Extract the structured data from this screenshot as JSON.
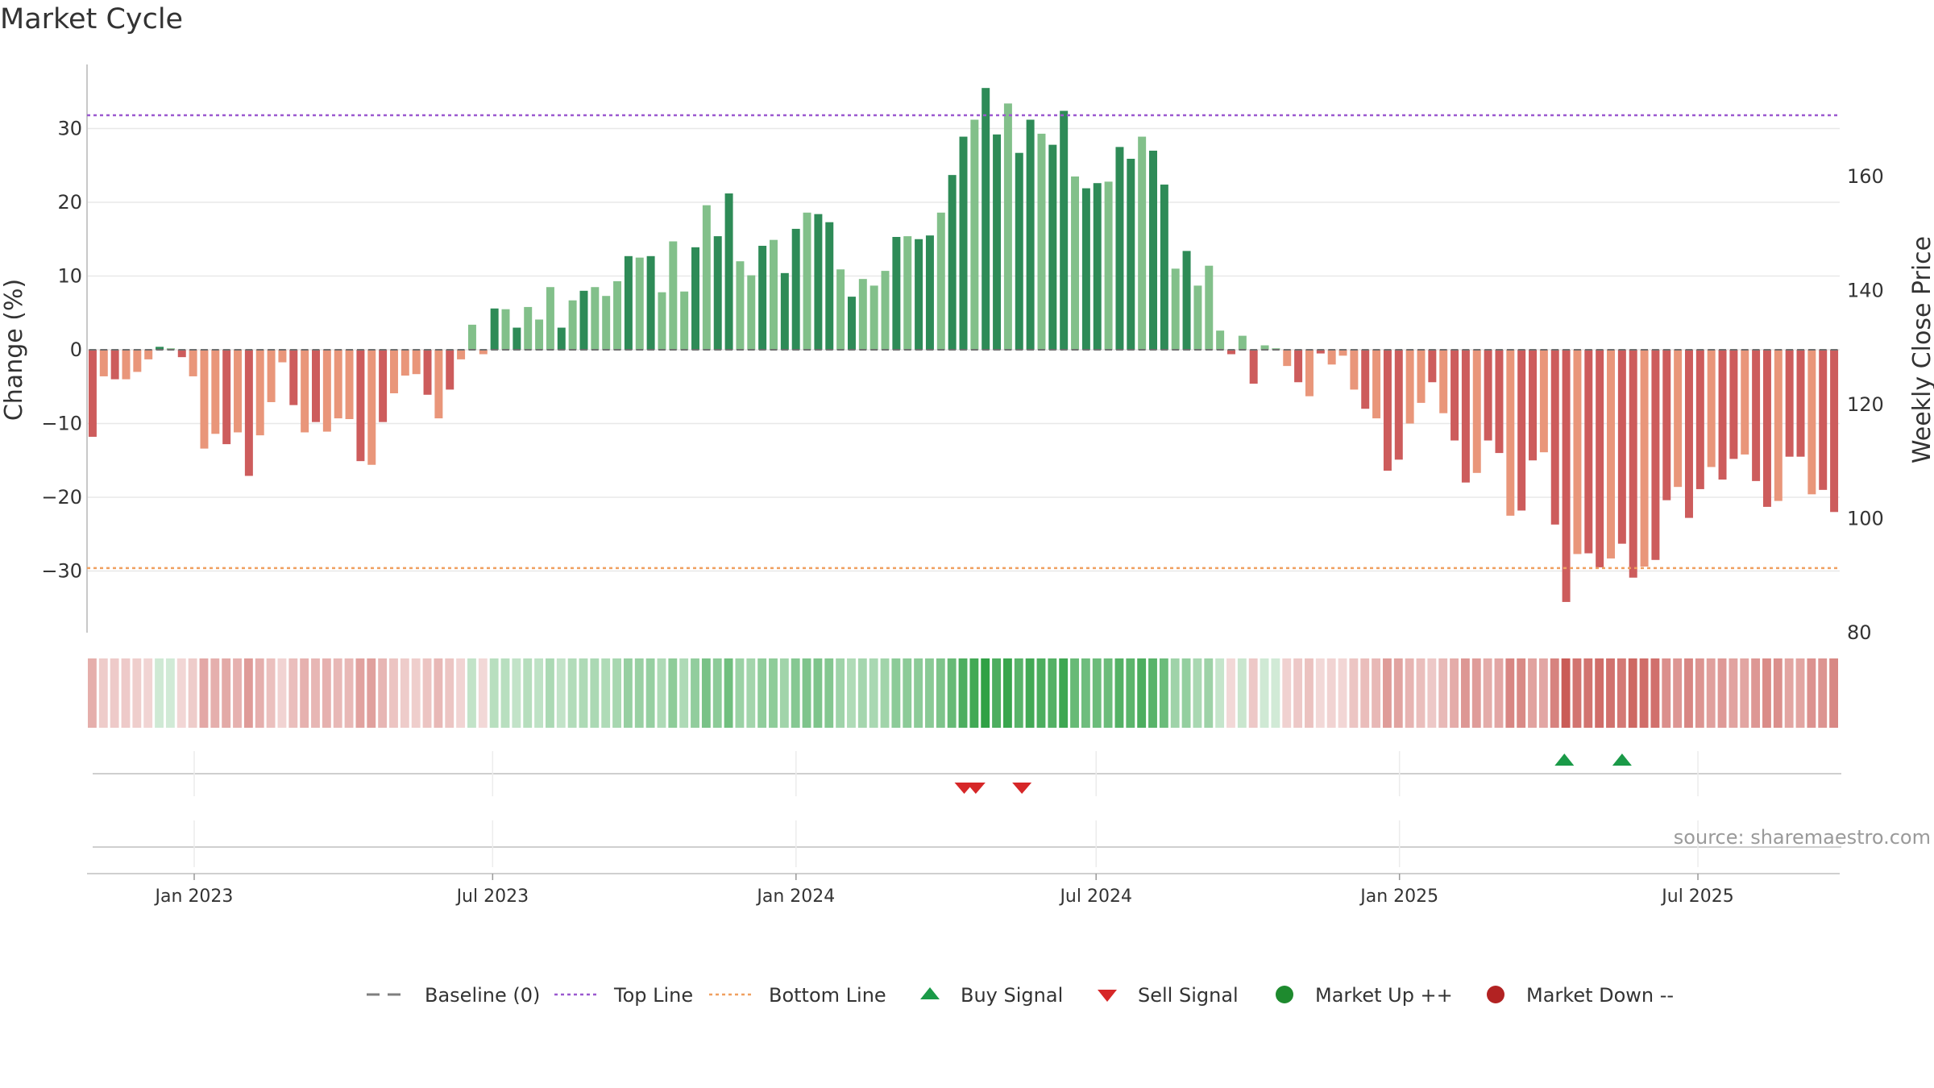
{
  "title": "Market Cycle",
  "source": "source: sharemaestro.com",
  "chart_data": {
    "type": "bar",
    "title": "Market Cycle",
    "ylabel": "Change (%)",
    "y2label": "Weekly Close Price",
    "ylim": [
      -38,
      38
    ],
    "y2lim": [
      80,
      170
    ],
    "yticks": [
      30,
      20,
      10,
      0,
      -10,
      -20,
      -30
    ],
    "y2ticks": [
      160,
      140,
      120,
      100,
      80
    ],
    "grid": true,
    "xlim": [
      "2022-10-28",
      "2025-09-25"
    ],
    "xticks": [
      {
        "date": "2023-01-01",
        "label": "Jan 2023"
      },
      {
        "date": "2023-07-01",
        "label": "Jul 2023"
      },
      {
        "date": "2024-01-01",
        "label": "Jan 2024"
      },
      {
        "date": "2024-07-01",
        "label": "Jul 2024"
      },
      {
        "date": "2025-01-01",
        "label": "Jan 2025"
      },
      {
        "date": "2025-07-01",
        "label": "Jul 2025"
      }
    ],
    "start_date": "2022-10-28",
    "week_step_days": 7,
    "top_line": 31.8,
    "bottom_line": -29.6,
    "baseline": 0,
    "series": [
      {
        "values": [
          -11.8,
          -3.6,
          -4.0,
          -4.0,
          -3.0,
          -1.3,
          0.4,
          0.2,
          -1.0,
          -3.6,
          -13.4,
          -11.4,
          -12.8,
          -11.2,
          -17.1,
          -11.6,
          -7.1,
          -1.7,
          -7.5,
          -11.2,
          -9.8,
          -11.1,
          -9.3,
          -9.4,
          -15.1,
          -15.6,
          -9.8,
          -5.9,
          -3.5,
          -3.3,
          -6.1,
          -9.3,
          -5.4,
          -1.3,
          3.4,
          -0.6,
          5.6,
          5.5,
          3.0,
          5.8,
          4.1,
          8.5,
          3.0,
          6.7,
          8.0,
          8.5,
          7.3,
          9.3,
          12.7,
          12.5,
          12.7,
          7.8,
          14.7,
          7.9,
          13.9,
          19.6,
          15.4,
          21.2,
          12.0,
          10.1,
          14.1,
          14.9,
          10.4,
          16.4,
          18.6,
          18.4,
          17.3,
          10.9,
          7.2,
          9.6,
          8.7,
          10.7,
          15.3,
          15.4,
          15.0,
          15.5,
          18.6,
          23.7,
          28.9,
          31.2,
          35.5,
          29.2,
          33.4,
          26.7,
          31.2,
          29.3,
          27.8,
          32.4,
          23.5,
          21.9,
          22.6,
          22.8,
          27.5,
          25.9,
          28.9,
          27.0,
          22.4,
          11.0,
          13.4,
          8.7,
          11.4,
          2.6,
          -0.6,
          1.9,
          -4.6,
          0.6,
          0.2,
          -2.2,
          -4.4,
          -6.3,
          -0.5,
          -2.0,
          -0.8,
          -5.4,
          -8.0,
          -9.3,
          -16.4,
          -14.9,
          -10.0,
          -7.2,
          -4.4,
          -8.6,
          -12.3,
          -18.0,
          -16.7,
          -12.3,
          -14.0,
          -22.5,
          -21.8,
          -15.0,
          -13.9,
          -23.7,
          -34.2,
          -27.7,
          -27.6,
          -29.5,
          -28.3,
          -26.3,
          -30.9,
          -29.4,
          -28.5,
          -20.4,
          -18.6,
          -22.8,
          -18.9,
          -15.9,
          -17.6,
          -14.8,
          -14.2,
          -17.8,
          -21.3,
          -20.5,
          -14.5,
          -14.5,
          -19.6,
          -19.0,
          -22.0
        ]
      }
    ],
    "buy_signals": [
      "2025-04-11",
      "2025-05-16"
    ],
    "sell_signals": [
      "2024-04-12",
      "2024-04-19",
      "2024-05-17"
    ],
    "colors": {
      "strong_up": "#2e8b57",
      "weak_up": "#82c08a",
      "strong_down": "#cd5c5c",
      "weak_down": "#e9967a",
      "top_line": "#9b59d0",
      "bottom_line": "#f0a060",
      "buy": "#1a9a48",
      "sell": "#d62728",
      "market_up": "#1e8a2e",
      "market_down": "#b22222"
    }
  },
  "legend": [
    {
      "name": "legend-baseline",
      "label": "Baseline (0)",
      "symbol": "dash",
      "color": "#7f7f7f"
    },
    {
      "name": "legend-top-line",
      "label": "Top Line",
      "symbol": "dot",
      "color": "#9b59d0"
    },
    {
      "name": "legend-bottom-line",
      "label": "Bottom Line",
      "symbol": "dot",
      "color": "#f0a060"
    },
    {
      "name": "legend-buy-signal",
      "label": "Buy Signal",
      "symbol": "triangle-up",
      "color": "#1a9a48"
    },
    {
      "name": "legend-sell-signal",
      "label": "Sell Signal",
      "symbol": "triangle-down",
      "color": "#d62728"
    },
    {
      "name": "legend-market-up",
      "label": "Market Up ++",
      "symbol": "circle",
      "color": "#1e8a2e"
    },
    {
      "name": "legend-market-down",
      "label": "Market Down --",
      "symbol": "circle",
      "color": "#b22222"
    }
  ]
}
